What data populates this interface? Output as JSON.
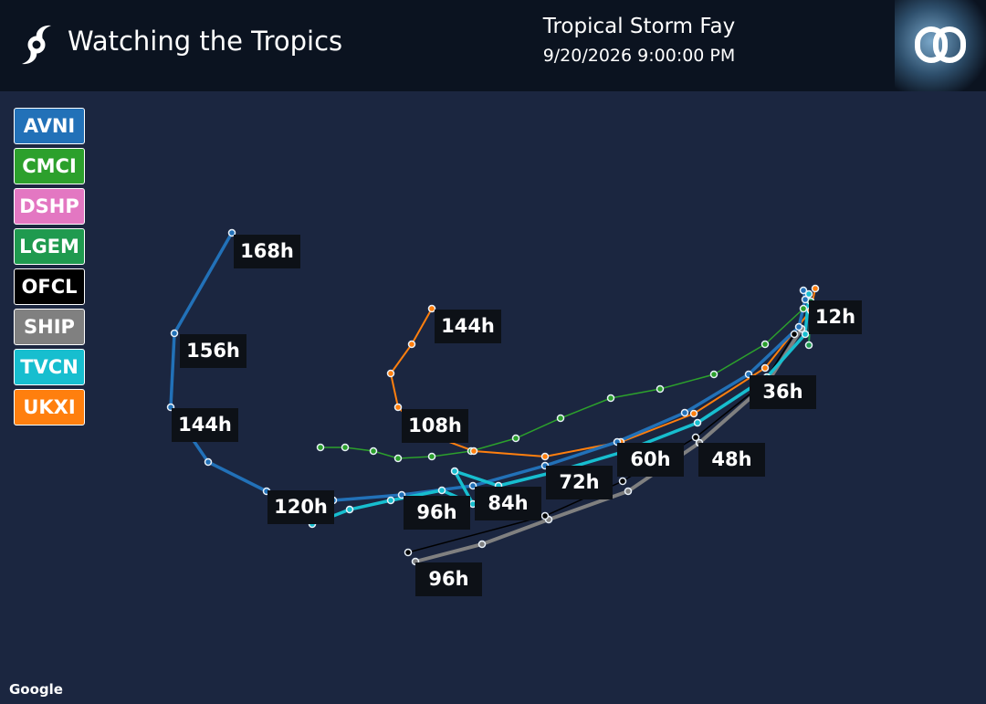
{
  "header": {
    "title": "Watching the Tropics",
    "storm": "Tropical Storm Fay",
    "datetime": "9/20/2026 9:00:00 PM"
  },
  "models": [
    {
      "name": "AVNI",
      "color": "#2271b8"
    },
    {
      "name": "CMCI",
      "color": "#2ca02c"
    },
    {
      "name": "DSHP",
      "color": "#e377c2"
    },
    {
      "name": "LGEM",
      "color": "#1f9a4f"
    },
    {
      "name": "OFCL",
      "color": "#000000"
    },
    {
      "name": "SHIP",
      "color": "#808080"
    },
    {
      "name": "TVCN",
      "color": "#17becf"
    },
    {
      "name": "UKXI",
      "color": "#ff7f0e"
    }
  ],
  "track_labels": [
    "168h",
    "156h",
    "144h",
    "144h",
    "108h",
    "12h",
    "36h",
    "60h",
    "48h",
    "72h",
    "84h",
    "96h",
    "120h",
    "96h"
  ],
  "attribution": "Google"
}
